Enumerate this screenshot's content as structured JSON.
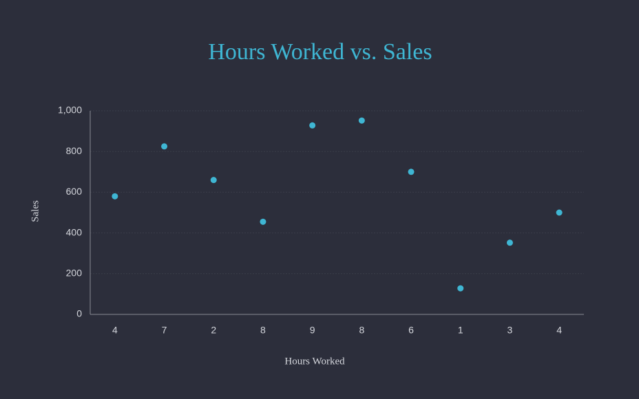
{
  "chart_data": {
    "type": "scatter",
    "title": "Hours Worked vs. Sales",
    "x_label": "Hours Worked",
    "y_label": "Sales",
    "categories": [
      "4",
      "7",
      "2",
      "8",
      "9",
      "8",
      "6",
      "1",
      "3",
      "4"
    ],
    "values": [
      580,
      825,
      660,
      455,
      928,
      952,
      700,
      128,
      352,
      500
    ],
    "color": "#3fb6d3",
    "ylim": [
      0,
      1000
    ],
    "yticks": [
      0,
      200,
      400,
      600,
      800,
      {
        "value": 1000,
        "label": "1,000"
      }
    ],
    "grid": true
  }
}
